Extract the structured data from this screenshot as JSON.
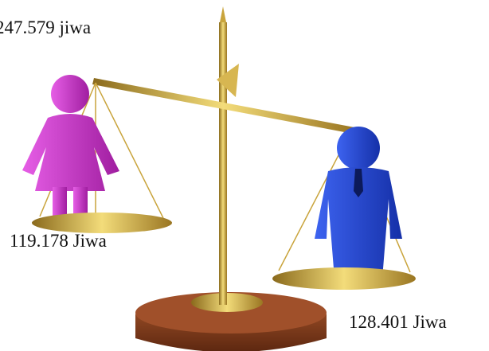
{
  "total": "247.579 jiwa",
  "female": {
    "label": "119.178 Jiwa"
  },
  "male": {
    "label": "128.401 Jiwa"
  }
}
